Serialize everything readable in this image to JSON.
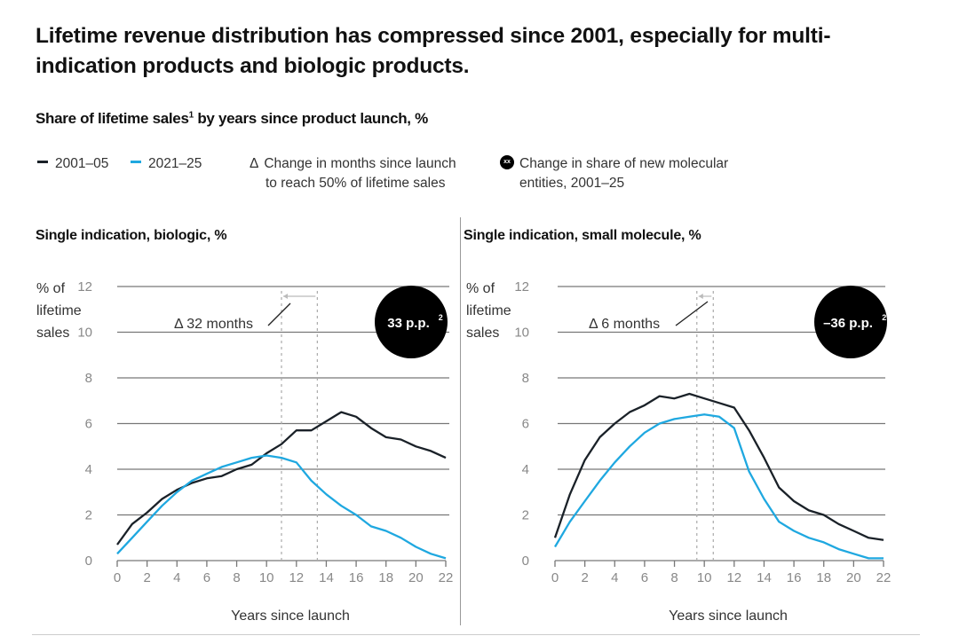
{
  "title": "Lifetime revenue distribution has compressed since 2001, especially for multi-indication products and biologic products.",
  "subtitle": {
    "text": "Share of lifetime sales",
    "footnote": "1",
    "suffix": " by years since product launch, %"
  },
  "legend": {
    "items": [
      {
        "label": "2001–05",
        "color": "#1a2128"
      },
      {
        "label": "2021–25",
        "color": "#1fa8e0"
      }
    ],
    "delta": {
      "symbol": "Δ",
      "line1": "Change in months since launch",
      "line2": "to reach 50% of lifetime sales"
    },
    "badge": {
      "glyph": "xx",
      "line1": "Change in share of new molecular",
      "line2": "entities, 2001–25"
    }
  },
  "chart_data": [
    {
      "type": "line",
      "title": "Single indication, biologic, %",
      "ylabel": [
        "% of",
        "lifetime",
        "sales"
      ],
      "xlabel": "Years since launch",
      "xlim": [
        0,
        22
      ],
      "ylim": [
        0,
        12
      ],
      "xticks": [
        0,
        2,
        4,
        6,
        8,
        10,
        12,
        14,
        16,
        18,
        20,
        22
      ],
      "yticks": [
        0,
        2,
        4,
        6,
        8,
        10,
        12
      ],
      "grid": true,
      "x": [
        0,
        1,
        2,
        3,
        4,
        5,
        6,
        7,
        8,
        9,
        10,
        11,
        12,
        13,
        14,
        15,
        16,
        17,
        18,
        19,
        20,
        21,
        22
      ],
      "series": [
        {
          "name": "2001–05",
          "color": "#1a2128",
          "values": [
            0.7,
            1.6,
            2.1,
            2.7,
            3.1,
            3.4,
            3.6,
            3.7,
            4.0,
            4.2,
            4.7,
            5.1,
            5.7,
            5.7,
            6.1,
            6.5,
            6.3,
            5.8,
            5.4,
            5.3,
            5.0,
            4.8,
            4.5
          ]
        },
        {
          "name": "2021–25",
          "color": "#1fa8e0",
          "values": [
            0.3,
            1.0,
            1.7,
            2.4,
            3.0,
            3.5,
            3.8,
            4.1,
            4.3,
            4.5,
            4.6,
            4.5,
            4.3,
            3.5,
            2.9,
            2.4,
            2.0,
            1.5,
            1.3,
            1.0,
            0.6,
            0.3,
            0.1
          ]
        }
      ],
      "markers_years": [
        11.0,
        13.4
      ],
      "annotation": "Δ 32 months",
      "badge": {
        "value": "33 p.p.",
        "footnote": "2"
      }
    },
    {
      "type": "line",
      "title": "Single indication, small molecule, %",
      "ylabel": [
        "% of",
        "lifetime",
        "sales"
      ],
      "xlabel": "Years since launch",
      "xlim": [
        0,
        22
      ],
      "ylim": [
        0,
        12
      ],
      "xticks": [
        0,
        2,
        4,
        6,
        8,
        10,
        12,
        14,
        16,
        18,
        20,
        22
      ],
      "yticks": [
        0,
        2,
        4,
        6,
        8,
        10,
        12
      ],
      "grid": true,
      "x": [
        0,
        1,
        2,
        3,
        4,
        5,
        6,
        7,
        8,
        9,
        10,
        11,
        12,
        13,
        14,
        15,
        16,
        17,
        18,
        19,
        20,
        21,
        22
      ],
      "series": [
        {
          "name": "2001–05",
          "color": "#1a2128",
          "values": [
            1.0,
            2.9,
            4.4,
            5.4,
            6.0,
            6.5,
            6.8,
            7.2,
            7.1,
            7.3,
            7.1,
            6.9,
            6.7,
            5.7,
            4.5,
            3.2,
            2.6,
            2.2,
            2.0,
            1.6,
            1.3,
            1.0,
            0.9
          ]
        },
        {
          "name": "2021–25",
          "color": "#1fa8e0",
          "values": [
            0.6,
            1.7,
            2.6,
            3.5,
            4.3,
            5.0,
            5.6,
            6.0,
            6.2,
            6.3,
            6.4,
            6.3,
            5.8,
            3.9,
            2.7,
            1.7,
            1.3,
            1.0,
            0.8,
            0.5,
            0.3,
            0.1,
            0.1
          ]
        }
      ],
      "markers_years": [
        9.5,
        10.6
      ],
      "annotation": "Δ 6 months",
      "badge": {
        "value": "–36 p.p.",
        "footnote": "2"
      }
    }
  ]
}
